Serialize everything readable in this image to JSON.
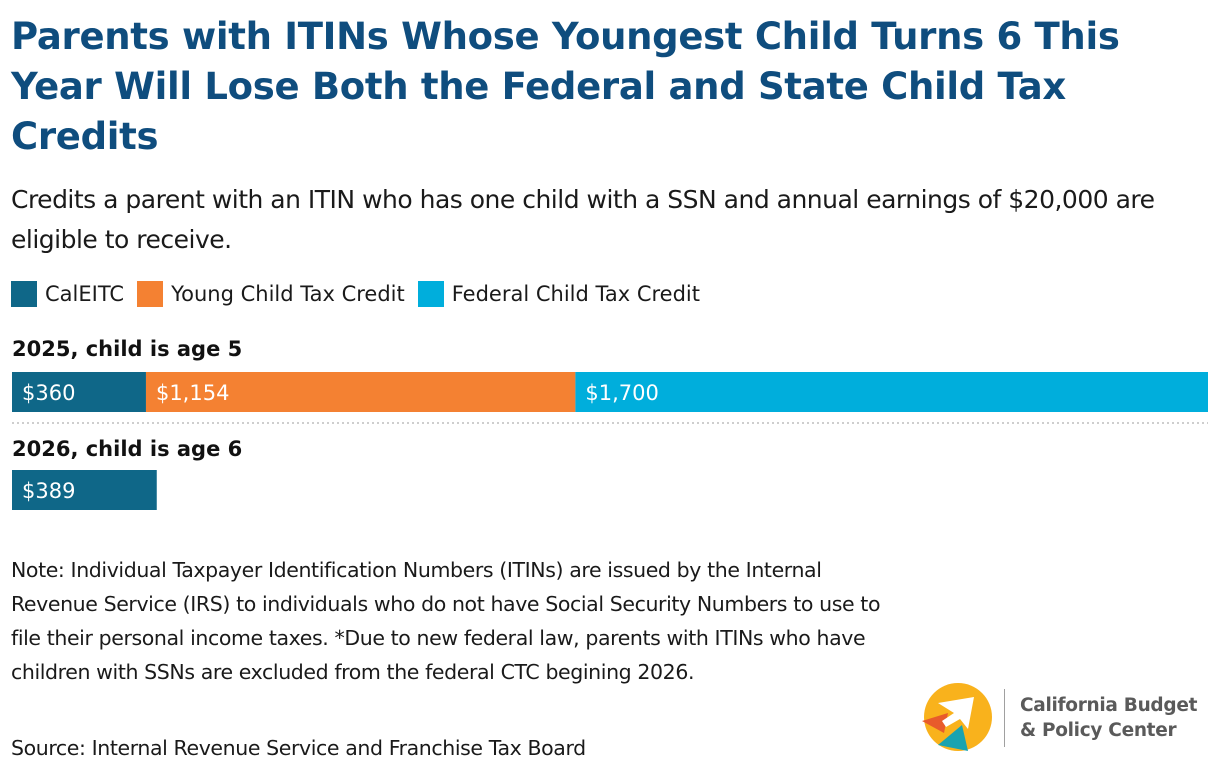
{
  "title": "Parents with ITINs Whose Youngest Child Turns 6 This Year Will Lose Both the Federal and State Child Tax Credits",
  "subtitle": "Credits a parent with an ITIN who has one child with a SSN and annual earnings of $20,000 are eligible to receive.",
  "colors": {
    "calEITC": "#0f6788",
    "young_child": "#f48132",
    "federal_ctc": "#00aedc",
    "title": "#0f4d7e"
  },
  "chart_data": {
    "type": "bar",
    "orientation": "horizontal",
    "stacked": true,
    "title": "Parents with ITINs Whose Youngest Child Turns 6 This Year Will Lose Both the Federal and State Child Tax Credits",
    "xlabel": "",
    "ylabel": "",
    "legend_position": "top-left",
    "categories": [
      "2025, child is age 5",
      "2026, child is age 6"
    ],
    "series": [
      {
        "name": "CalEITC",
        "values": [
          360,
          389
        ],
        "labels": [
          "$360",
          "$389"
        ],
        "color": "#0f6788"
      },
      {
        "name": "Young Child Tax Credit",
        "values": [
          1154,
          0
        ],
        "labels": [
          "$1,154",
          ""
        ],
        "color": "#f48132"
      },
      {
        "name": "Federal Child Tax Credit",
        "values": [
          1700,
          0
        ],
        "labels": [
          "$1,700",
          ""
        ],
        "color": "#00aedc"
      }
    ],
    "xlim": [
      0,
      3214
    ]
  },
  "note": "Note: Individual Taxpayer Identification Numbers (ITINs) are issued by the Internal Revenue Service (IRS) to individuals who do not have Social Security Numbers to use to file their personal income taxes. *Due to new federal law, parents with ITINs who have children with SSNs are excluded from the federal CTC begining 2026.",
  "source": "Source: Internal Revenue Service and Franchise Tax Board",
  "logo": {
    "line1": "California Budget",
    "line2": "& Policy Center"
  }
}
